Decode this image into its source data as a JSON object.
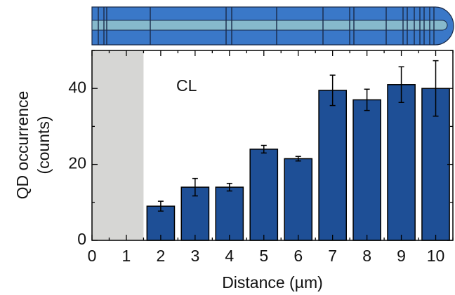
{
  "chart_data": {
    "type": "bar",
    "categories": [
      2,
      3,
      4,
      5,
      6,
      7,
      8,
      9,
      10
    ],
    "values": [
      9,
      14,
      14,
      24,
      21.5,
      39.5,
      37,
      41,
      40
    ],
    "errors": [
      1.3,
      2.3,
      1,
      1,
      0.6,
      4,
      2.8,
      4.7,
      7.3
    ],
    "color": "#1e4f96",
    "bar_width": 0.8,
    "shaded_region": [
      0,
      1.5
    ],
    "shaded_color": "#d6d6d4",
    "annotation": "CL",
    "xlabel": "Distance (µm)",
    "ylabel": [
      "QD occurrence",
      "(counts)"
    ],
    "xlim": [
      0,
      10.5
    ],
    "xticks": [
      0,
      1,
      2,
      3,
      4,
      5,
      6,
      7,
      8,
      9,
      10
    ],
    "xticks_minor": [
      0.5,
      1.5,
      2.5,
      3.5,
      4.5,
      5.5,
      6.5,
      7.5,
      8.5,
      9.5,
      10.5
    ],
    "ylim": [
      0,
      50
    ],
    "yticks": [
      0,
      20,
      40
    ],
    "yticks_minor": [
      10,
      30,
      50
    ]
  }
}
